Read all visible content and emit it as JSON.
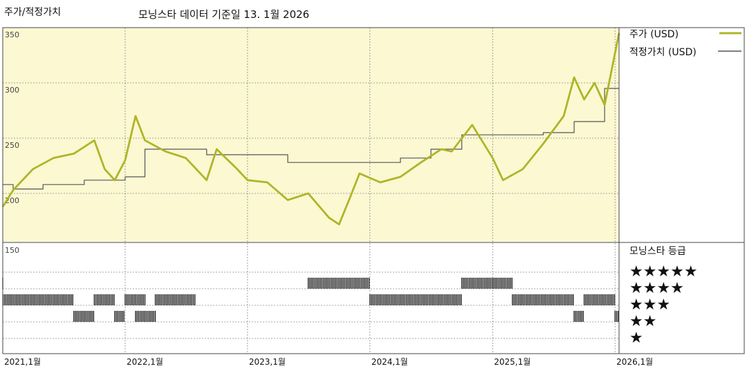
{
  "header": {
    "title": "주가/적정가치",
    "subtitle": "모닝스타 데이터 기준일 13. 1월 2026"
  },
  "legend": {
    "price": "주가 (USD)",
    "fair_value": "적정가치 (USD)",
    "rating_title": "모닝스타 등급"
  },
  "colors": {
    "price": "#b0b427",
    "fair_value": "#555555",
    "plot_bg": "#fbf8d2",
    "grid": "#888888",
    "bars": "#111111"
  },
  "chart_data": {
    "type": "line",
    "title": "주가/적정가치",
    "subtitle": "모닝스타 데이터 기준일 13. 1월 2026",
    "x_range": [
      "2021-01-01",
      "2026-01-13"
    ],
    "x_tick_labels": [
      "2021,1월",
      "2022,1월",
      "2023,1월",
      "2024,1월",
      "2025,1월",
      "2026,1월"
    ],
    "x_ticks": [
      "2021-01",
      "2022-01",
      "2023-01",
      "2024-01",
      "2025-01",
      "2026-01"
    ],
    "ylim": [
      150,
      350
    ],
    "y_ticks": [
      150,
      200,
      250,
      300,
      350
    ],
    "grid": true,
    "legend_position": "right",
    "series": [
      {
        "name": "주가 (USD)",
        "x": [
          "2021-01",
          "2021-02",
          "2021-04",
          "2021-06",
          "2021-08",
          "2021-10",
          "2021-11",
          "2021-12",
          "2022-01",
          "2022-02",
          "2022-03",
          "2022-05",
          "2022-07",
          "2022-09",
          "2022-10",
          "2022-12",
          "2023-01",
          "2023-03",
          "2023-05",
          "2023-07",
          "2023-09",
          "2023-10",
          "2023-11",
          "2023-12",
          "2024-02",
          "2024-04",
          "2024-06",
          "2024-08",
          "2024-09",
          "2024-11",
          "2025-01",
          "2025-02",
          "2025-04",
          "2025-06",
          "2025-08",
          "2025-09",
          "2025-10",
          "2025-11",
          "2025-12",
          "2026-01-13"
        ],
        "values": [
          188,
          203,
          222,
          232,
          236,
          248,
          222,
          212,
          230,
          270,
          248,
          238,
          232,
          212,
          240,
          222,
          212,
          210,
          194,
          200,
          178,
          172,
          195,
          218,
          210,
          215,
          228,
          240,
          238,
          262,
          232,
          212,
          222,
          245,
          270,
          305,
          285,
          300,
          280,
          345
        ]
      },
      {
        "name": "적정가치 (USD)",
        "x": [
          "2021-01",
          "2021-02",
          "2021-05",
          "2021-09",
          "2022-01",
          "2022-03",
          "2022-09",
          "2023-05",
          "2023-11",
          "2024-04",
          "2024-07",
          "2024-10",
          "2025-03",
          "2025-06",
          "2025-09",
          "2025-12",
          "2026-01-13"
        ],
        "values": [
          208,
          204,
          208,
          212,
          215,
          240,
          235,
          228,
          228,
          232,
          240,
          253,
          253,
          255,
          265,
          295,
          295
        ]
      }
    ]
  },
  "rating_panel": {
    "levels": [
      "★★★★★",
      "★★★★",
      "★★★",
      "★★",
      "★"
    ],
    "level_values": [
      5,
      4,
      3,
      2,
      1
    ],
    "periods": [
      {
        "start": "2021-01",
        "end": "2021-01",
        "stars": 4
      },
      {
        "start": "2021-01",
        "end": "2021-08",
        "stars": 3
      },
      {
        "start": "2021-08",
        "end": "2021-10",
        "stars": 2
      },
      {
        "start": "2021-10",
        "end": "2021-12",
        "stars": 3
      },
      {
        "start": "2021-12",
        "end": "2022-01",
        "stars": 2
      },
      {
        "start": "2022-01",
        "end": "2022-03",
        "stars": 3
      },
      {
        "start": "2022-02",
        "end": "2022-04",
        "stars": 2
      },
      {
        "start": "2022-04",
        "end": "2022-08",
        "stars": 3
      },
      {
        "start": "2023-07",
        "end": "2024-01",
        "stars": 4
      },
      {
        "start": "2024-01",
        "end": "2024-10",
        "stars": 3
      },
      {
        "start": "2024-10",
        "end": "2025-03",
        "stars": 4
      },
      {
        "start": "2025-03",
        "end": "2025-09",
        "stars": 3
      },
      {
        "start": "2025-09",
        "end": "2025-10",
        "stars": 2
      },
      {
        "start": "2025-10",
        "end": "2026-01",
        "stars": 3
      },
      {
        "start": "2026-01",
        "end": "2026-01-13",
        "stars": 2
      }
    ]
  }
}
